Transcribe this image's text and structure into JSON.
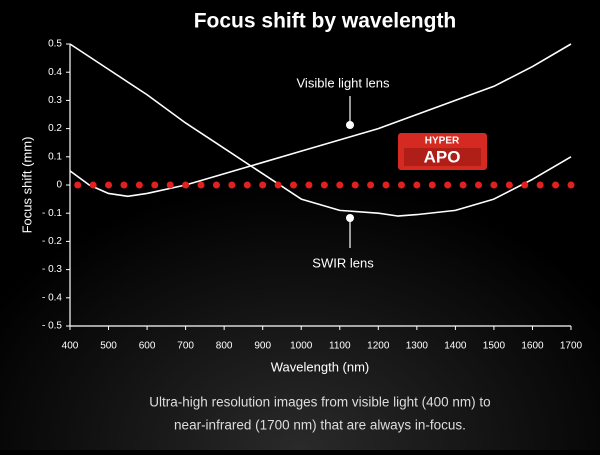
{
  "chart_data": {
    "type": "line",
    "title": "Focus shift by wavelength",
    "x_label": "Wavelength (nm)",
    "y_label": "Focus shift (mm)",
    "xlim": [
      400,
      1700
    ],
    "ylim": [
      -0.5,
      0.5
    ],
    "xticks": [
      400,
      500,
      600,
      700,
      800,
      900,
      1000,
      1100,
      1200,
      1300,
      1400,
      1500,
      1600,
      1700
    ],
    "yticks": [
      0.5,
      0.4,
      0.3,
      0.2,
      0.1,
      0,
      {
        "value": -0.1,
        "label": "- 0.1"
      },
      {
        "value": -0.2,
        "label": "- 0.2"
      },
      {
        "value": -0.3,
        "label": "- 0.3"
      },
      {
        "value": -0.4,
        "label": "- 0.4"
      },
      {
        "value": -0.5,
        "label": "- 0.5"
      }
    ],
    "series": [
      {
        "name": "Visible light lens",
        "color": "#ffffff",
        "x": [
          400,
          450,
          500,
          550,
          600,
          700,
          800,
          900,
          1000,
          1100,
          1200,
          1300,
          1400,
          1500,
          1600,
          1700
        ],
        "values": [
          0.05,
          0.0,
          -0.03,
          -0.04,
          -0.03,
          0.0,
          0.04,
          0.08,
          0.12,
          0.16,
          0.2,
          0.25,
          0.3,
          0.35,
          0.42,
          0.5
        ]
      },
      {
        "name": "SWIR lens",
        "color": "#ffffff",
        "x": [
          400,
          500,
          600,
          700,
          800,
          900,
          1000,
          1100,
          1200,
          1250,
          1300,
          1400,
          1500,
          1600,
          1700
        ],
        "values": [
          0.5,
          0.41,
          0.32,
          0.22,
          0.13,
          0.04,
          -0.05,
          -0.09,
          -0.1,
          -0.11,
          -0.105,
          -0.09,
          -0.05,
          0.02,
          0.1
        ]
      },
      {
        "color": "#e0211f",
        "style": "dots",
        "x": [
          420,
          460,
          500,
          540,
          580,
          620,
          660,
          700,
          740,
          780,
          820,
          860,
          900,
          940,
          980,
          1020,
          1060,
          1100,
          1140,
          1180,
          1220,
          1260,
          1300,
          1340,
          1380,
          1420,
          1460,
          1500,
          1540,
          1580,
          1620,
          1660,
          1700
        ],
        "values": [
          0,
          0,
          0,
          0,
          0,
          0,
          0,
          0,
          0,
          0,
          0,
          0,
          0,
          0,
          0,
          0,
          0,
          0,
          0,
          0,
          0,
          0,
          0,
          0,
          0,
          0,
          0,
          0,
          0,
          0,
          0,
          0,
          0
        ]
      }
    ],
    "badge": [
      "HYPER",
      "APO"
    ],
    "caption": [
      "Ultra-high resolution images from visible light (400 nm) to",
      "near-infrared (1700 nm) that are always in-focus."
    ]
  }
}
